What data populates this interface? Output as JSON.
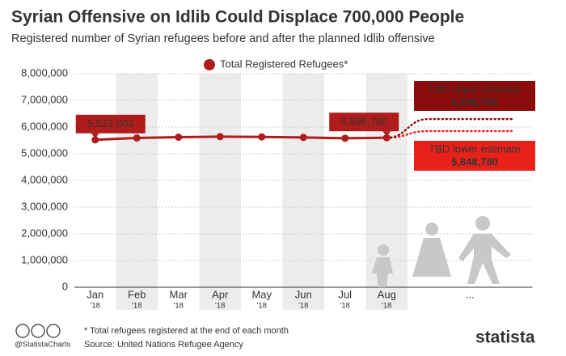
{
  "chart_data": {
    "type": "line",
    "title": "Syrian Offensive on Idlib Could Displace 700,000 People",
    "subtitle": "Registered number of Syrian refugees before and after the planned Idlib offensive",
    "categories": [
      "Jan",
      "Feb",
      "Mar",
      "Apr",
      "May",
      "Jun",
      "Jul",
      "Aug",
      null,
      "...",
      null
    ],
    "category_years": [
      "'18",
      "'18",
      "'18",
      "'18",
      "'18",
      "'18",
      "'18",
      "'18",
      null,
      null,
      null
    ],
    "series": [
      {
        "name": "Total Registered Refugees*",
        "color": "#b01c1c",
        "values": [
          5521003,
          5590000,
          5620000,
          5640000,
          5630000,
          5610000,
          5580000,
          5598780,
          null,
          null,
          null
        ],
        "value_labels": [
          "5,521,003",
          null,
          null,
          null,
          null,
          null,
          null,
          "5,598,780",
          null,
          null,
          null
        ]
      },
      {
        "name": "TBD upper estimate",
        "color": "#8b0a0a",
        "values": [
          null,
          null,
          null,
          null,
          null,
          null,
          null,
          5598780,
          6298780,
          6298780,
          6298780
        ],
        "value_labels": [
          null,
          null,
          null,
          null,
          null,
          null,
          null,
          null,
          null,
          "6,298,780",
          null
        ]
      },
      {
        "name": "TBD lower estimate",
        "color": "#e8221b",
        "values": [
          null,
          null,
          null,
          null,
          null,
          null,
          null,
          5598780,
          5848780,
          5848780,
          5848780
        ],
        "value_labels": [
          null,
          null,
          null,
          null,
          null,
          null,
          null,
          null,
          null,
          "5,848,780",
          null
        ]
      }
    ],
    "ylim": [
      0,
      8000000
    ],
    "yticks": [
      0,
      {
        "value": 1000000,
        "label": "1,000,000"
      },
      {
        "value": 2000000,
        "label": "2,000,000"
      },
      {
        "value": 3000000,
        "label": "3,000,000"
      },
      {
        "value": 4000000,
        "label": "4,000,000"
      },
      {
        "value": 5000000,
        "label": "5,000,000"
      },
      {
        "value": 6000000,
        "label": "6,000,000"
      },
      {
        "value": 7000000,
        "label": "7,000,000"
      },
      {
        "value": 8000000,
        "label": "8,000,000"
      }
    ],
    "grid": true,
    "footnote": "* Total refugees registered at the end of each month",
    "source": "Source: United Nations Refugee Agency",
    "handle": "@StatistaCharts",
    "brand": "statista"
  }
}
